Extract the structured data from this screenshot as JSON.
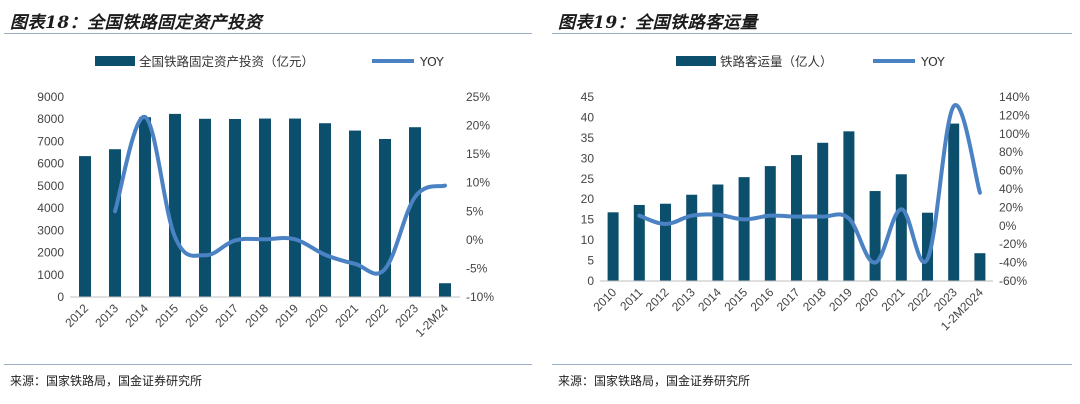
{
  "colors": {
    "bar": "#0b4f6c",
    "line": "#4a82c3",
    "rule": "#9ab0c6"
  },
  "charts": [
    {
      "title": "图表18：全国铁路固定资产投资",
      "source": "来源：国家铁路局，国金证券研究所",
      "chart_data": {
        "type": "bar",
        "categories": [
          "2012",
          "2013",
          "2014",
          "2015",
          "2016",
          "2017",
          "2018",
          "2019",
          "2020",
          "2021",
          "2022",
          "2023",
          "1-2M24"
        ],
        "series": [
          {
            "name": "全国铁路固定资产投资（亿元）",
            "axis": "left",
            "kind": "bar",
            "values": [
              6340,
              6650,
              8090,
              8240,
              8020,
              8010,
              8030,
              8030,
              7820,
              7490,
              7110,
              7640,
              620
            ]
          },
          {
            "name": "YOY",
            "axis": "right",
            "kind": "line",
            "values": [
              null,
              5,
              21.5,
              0.5,
              -2.7,
              -0.1,
              0.1,
              0.1,
              -2.6,
              -4.2,
              -5.1,
              7.5,
              9.5
            ]
          }
        ],
        "ylim_left": [
          0,
          9000
        ],
        "yticks_left": [
          "0",
          "1000",
          "2000",
          "3000",
          "4000",
          "5000",
          "6000",
          "7000",
          "8000",
          "9000"
        ],
        "ylim_right": [
          -10,
          25
        ],
        "yticks_right": [
          "-10%",
          "-5%",
          "0%",
          "5%",
          "10%",
          "15%",
          "20%",
          "25%"
        ],
        "legend_position": "top"
      }
    },
    {
      "title": "图表19：全国铁路客运量",
      "source": "来源：国家铁路局，国金证券研究所",
      "chart_data": {
        "type": "bar",
        "categories": [
          "2010",
          "2011",
          "2012",
          "2013",
          "2014",
          "2015",
          "2016",
          "2017",
          "2018",
          "2019",
          "2020",
          "2021",
          "2022",
          "2023",
          "1-2M2024"
        ],
        "series": [
          {
            "name": "铁路客运量（亿人）",
            "axis": "left",
            "kind": "bar",
            "values": [
              16.8,
              18.6,
              18.9,
              21.1,
              23.6,
              25.4,
              28.1,
              30.8,
              33.8,
              36.6,
              22.0,
              26.1,
              16.7,
              38.5,
              6.8
            ]
          },
          {
            "name": "YOY",
            "axis": "right",
            "kind": "line",
            "values": [
              null,
              11,
              2,
              11,
              12,
              7,
              11,
              10,
              10,
              8,
              -40,
              18,
              -36,
              130,
              36
            ]
          }
        ],
        "ylim_left": [
          0,
          45
        ],
        "yticks_left": [
          "0",
          "5",
          "10",
          "15",
          "20",
          "25",
          "30",
          "35",
          "40",
          "45"
        ],
        "ylim_right": [
          -60,
          140
        ],
        "yticks_right": [
          "-60%",
          "-40%",
          "-20%",
          "0%",
          "20%",
          "40%",
          "60%",
          "80%",
          "100%",
          "120%",
          "140%"
        ],
        "legend_position": "top"
      }
    }
  ]
}
